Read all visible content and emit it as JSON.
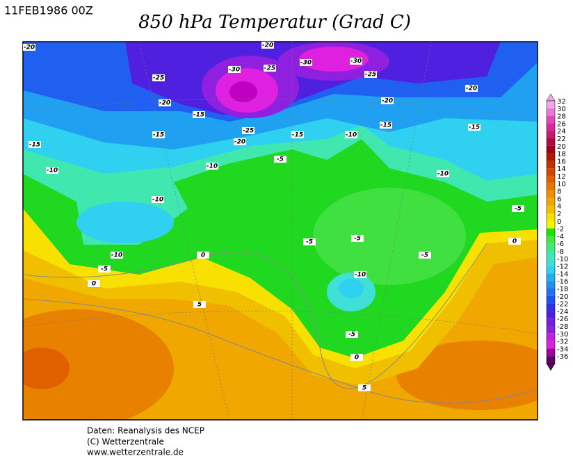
{
  "header": {
    "date": "11FEB1986 00Z",
    "title": "850 hPa Temperatur (Grad C)"
  },
  "colorbar": {
    "levels": [
      32,
      30,
      28,
      26,
      24,
      22,
      20,
      18,
      16,
      14,
      12,
      10,
      8,
      6,
      4,
      2,
      0,
      -2,
      -4,
      -6,
      -8,
      -10,
      -12,
      -14,
      -16,
      -18,
      -20,
      -22,
      -24,
      -26,
      -28,
      -30,
      -32,
      -34,
      -36
    ],
    "colors": [
      "#f0a8e8",
      "#e878d8",
      "#e048b8",
      "#d82898",
      "#c81870",
      "#b00840",
      "#a00018",
      "#b01800",
      "#c03000",
      "#d04800",
      "#e06000",
      "#e87800",
      "#f09000",
      "#f0a800",
      "#f0c000",
      "#f8e000",
      "#f0f800",
      "#20e000",
      "#40e840",
      "#40e880",
      "#40e8b0",
      "#40e0d8",
      "#30d0f0",
      "#20b0f0",
      "#2090f0",
      "#2070f0",
      "#2050f0",
      "#3030e8",
      "#5020e0",
      "#7020e0",
      "#9020e0",
      "#c020e0",
      "#e020e0",
      "#a000a0",
      "#600060"
    ]
  },
  "contour_labels": [
    -20,
    -20,
    -25,
    -30,
    -25,
    -30,
    -30,
    -25,
    -20,
    -20,
    -20,
    -15,
    -25,
    -20,
    -15,
    -15,
    -15,
    -10,
    -15,
    -15,
    -5,
    -10,
    -10,
    -10,
    -10,
    -5,
    -10,
    -5,
    0,
    0,
    -5,
    -5,
    -5,
    0,
    -10,
    5,
    -5,
    0,
    5
  ],
  "footer": {
    "lines": [
      "Daten: Reanalysis des NCEP",
      "(C) Wetterzentrale",
      "www.wetterzentrale.de"
    ]
  }
}
